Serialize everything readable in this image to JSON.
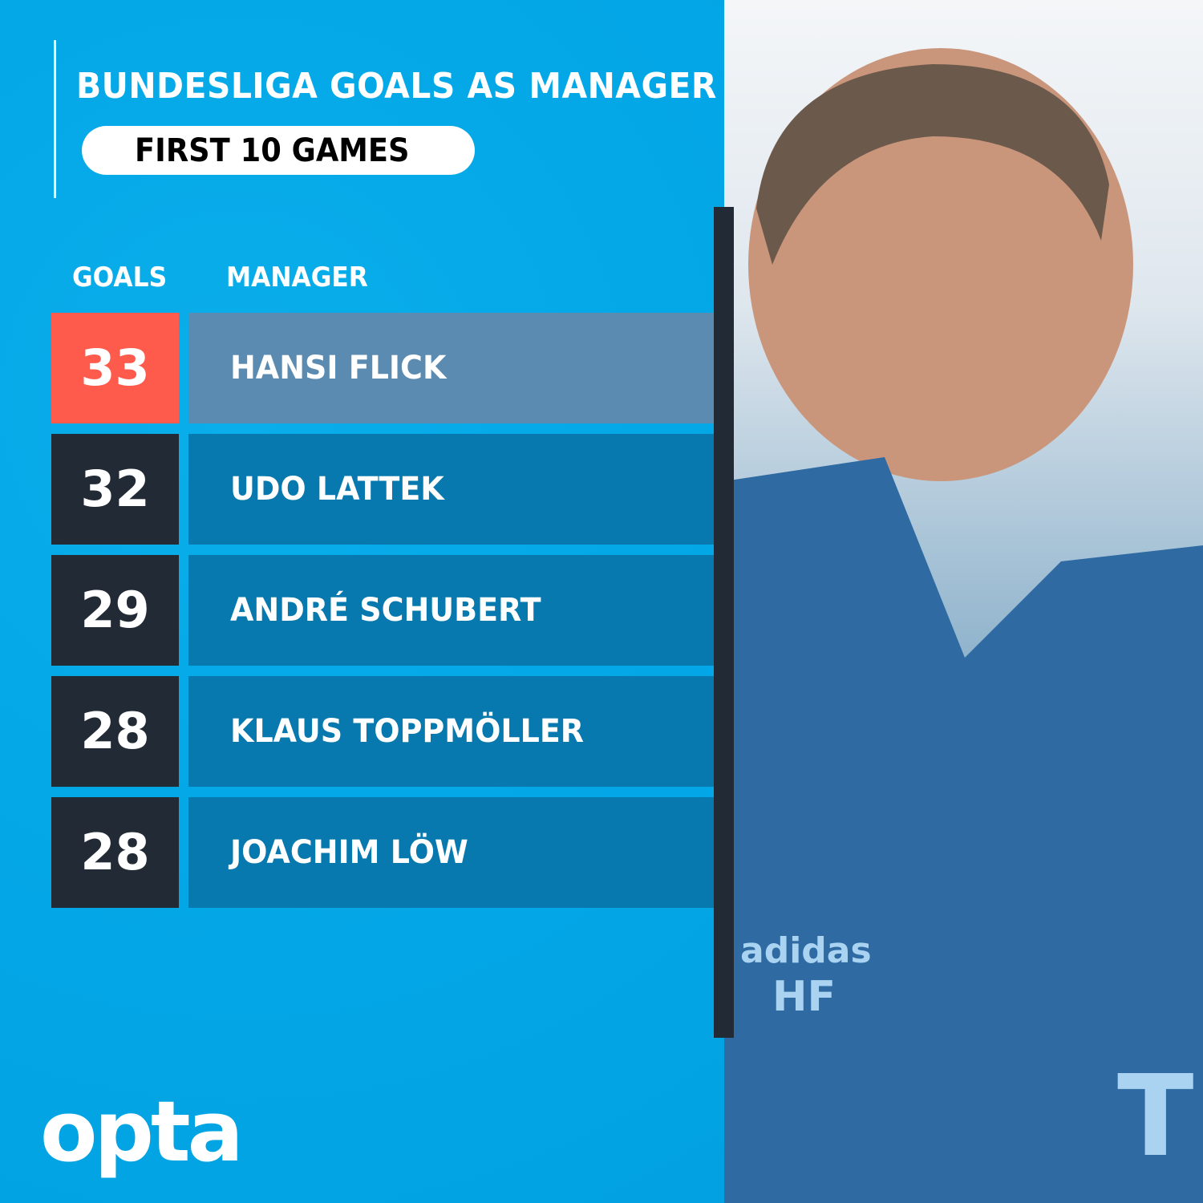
{
  "title": "BUNDESLIGA GOALS AS MANAGER",
  "subtitle": "FIRST 10 GAMES",
  "columns": {
    "goals": "GOALS",
    "manager": "MANAGER"
  },
  "rows": [
    {
      "goals": "33",
      "manager": "HANSI FLICK",
      "highlight": true
    },
    {
      "goals": "32",
      "manager": "UDO LATTEK",
      "highlight": false
    },
    {
      "goals": "29",
      "manager": "ANDRÉ SCHUBERT",
      "highlight": false
    },
    {
      "goals": "28",
      "manager": "KLAUS TOPPMÖLLER",
      "highlight": false
    },
    {
      "goals": "28",
      "manager": "JOACHIM LÖW",
      "highlight": false
    }
  ],
  "logo": "opta",
  "photo": {
    "jacket_text": "adidas HF"
  },
  "colors": {
    "background": "#04a9e8",
    "highlight_goals": "#fe5b4c",
    "highlight_name": "#5b8bb0",
    "goals_box": "#222a35",
    "name_box": "#0879ae"
  }
}
